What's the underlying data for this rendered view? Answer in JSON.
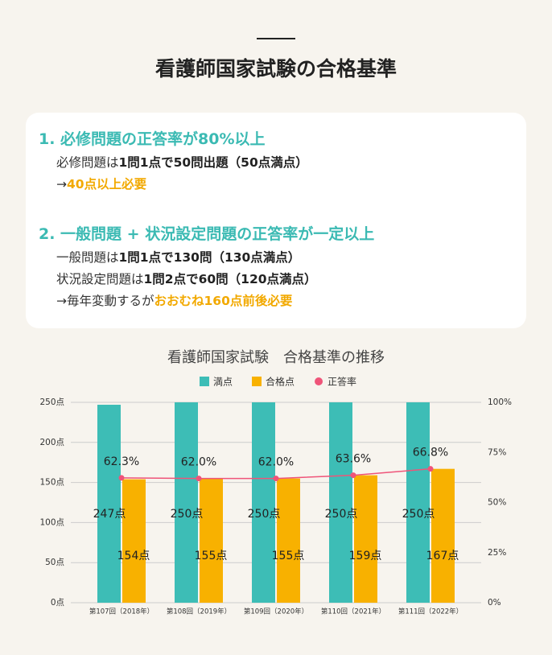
{
  "header": {
    "title": "看護師国家試験の合格基準"
  },
  "card": {
    "items": [
      {
        "heading": "1. 必修問題の正答率が80%以上",
        "lines": [
          [
            {
              "text": "必修問題は",
              "style": "normal"
            },
            {
              "text": "1問1点で50問出題（50点満点）",
              "style": "bold"
            }
          ],
          [
            {
              "text": "→",
              "style": "normal"
            },
            {
              "text": "40点以上必要",
              "style": "accent"
            }
          ]
        ]
      },
      {
        "heading": "2. 一般問題 + 状況設定問題の正答率が一定以上",
        "lines": [
          [
            {
              "text": "一般問題は",
              "style": "normal"
            },
            {
              "text": "1問1点で130問（130点満点）",
              "style": "bold"
            }
          ],
          [
            {
              "text": "状況設定問題は",
              "style": "normal"
            },
            {
              "text": "1問2点で60問（120点満点）",
              "style": "bold"
            }
          ],
          [
            {
              "text": "→毎年変動するが",
              "style": "normal"
            },
            {
              "text": "おおむね160点前後必要",
              "style": "accent"
            }
          ]
        ]
      }
    ]
  },
  "chart_data": {
    "type": "bar",
    "title": "看護師国家試験　合格基準の推移",
    "categories": [
      "第107回（2018年）",
      "第108回（2019年）",
      "第109回（2020年）",
      "第110回（2021年）",
      "第111回（2022年）"
    ],
    "series": [
      {
        "name": "満点",
        "color": "#3dbdb6",
        "values": [
          247,
          250,
          250,
          250,
          250
        ],
        "value_labels": [
          "247点",
          "250点",
          "250点",
          "250点",
          "250点"
        ]
      },
      {
        "name": "合格点",
        "color": "#f8b100",
        "values": [
          154,
          155,
          155,
          159,
          167
        ],
        "value_labels": [
          "154点",
          "155点",
          "155点",
          "159点",
          "167点"
        ]
      },
      {
        "name": "正答率",
        "color": "#ef5479",
        "type": "line",
        "axis": "y2",
        "values": [
          62.3,
          62.0,
          62.0,
          63.6,
          66.8
        ],
        "value_labels": [
          "62.3%",
          "62.0%",
          "62.0%",
          "63.6%",
          "66.8%"
        ]
      }
    ],
    "ylim": [
      0,
      250
    ],
    "yticks": [
      {
        "value": 0,
        "label": "0点"
      },
      {
        "value": 50,
        "label": "50点"
      },
      {
        "value": 100,
        "label": "100点"
      },
      {
        "value": 150,
        "label": "150点"
      },
      {
        "value": 200,
        "label": "200点"
      },
      {
        "value": 250,
        "label": "250点"
      }
    ],
    "y2lim": [
      0,
      100
    ],
    "y2ticks": [
      {
        "value": 0,
        "label": "0%"
      },
      {
        "value": 25,
        "label": "25%"
      },
      {
        "value": 50,
        "label": "50%"
      },
      {
        "value": 75,
        "label": "75%"
      },
      {
        "value": 100,
        "label": "100%"
      }
    ],
    "grid": true,
    "legend": "top"
  }
}
